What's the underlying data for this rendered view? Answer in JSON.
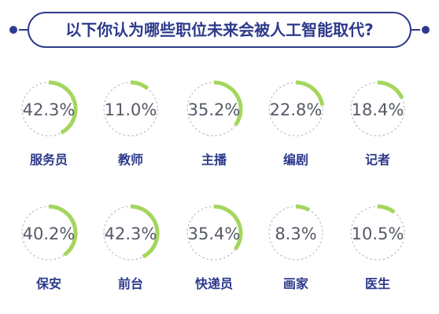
{
  "title": "以下你认为哪些职位未来会被人工智能取代?",
  "colors": {
    "title": "#2d3a8c",
    "accent": "#a4d65e",
    "track": "#b8bcc8",
    "banner_border": "#2d3a8c",
    "banner_dot": "#2d3a8c",
    "value_text": "#555a66",
    "label_text": "#2d3a8c"
  },
  "chart_data": {
    "type": "donut-grid",
    "title": "以下你认为哪些职位未来会被人工智能取代?",
    "unit": "%",
    "items": [
      {
        "label": "服务员",
        "value": 42.3,
        "display": "42.3%"
      },
      {
        "label": "教师",
        "value": 11.0,
        "display": "11.0%"
      },
      {
        "label": "主播",
        "value": 35.2,
        "display": "35.2%"
      },
      {
        "label": "编剧",
        "value": 22.8,
        "display": "22.8%"
      },
      {
        "label": "记者",
        "value": 18.4,
        "display": "18.4%"
      },
      {
        "label": "保安",
        "value": 40.2,
        "display": "40.2%"
      },
      {
        "label": "前台",
        "value": 42.3,
        "display": "42.3%"
      },
      {
        "label": "快递员",
        "value": 35.4,
        "display": "35.4%"
      },
      {
        "label": "画家",
        "value": 8.3,
        "display": "8.3%"
      },
      {
        "label": "医生",
        "value": 10.5,
        "display": "10.5%"
      }
    ]
  }
}
